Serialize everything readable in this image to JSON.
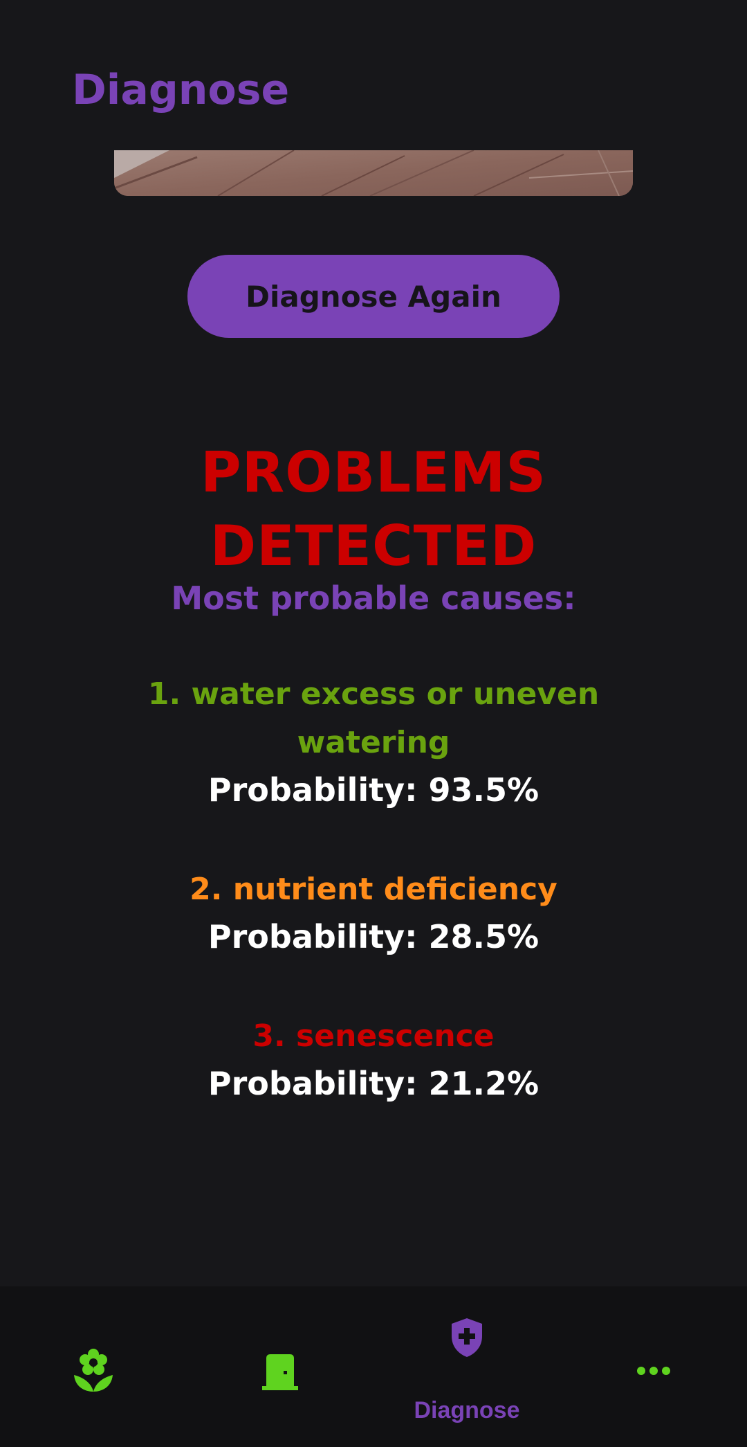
{
  "header": {
    "title": "Diagnose"
  },
  "actions": {
    "diagnose_again_label": "Diagnose Again"
  },
  "results": {
    "status_line1": "PROBLEMS",
    "status_line2": "DETECTED",
    "causes_heading": "Most probable causes:",
    "causes": [
      {
        "label": "1. water excess or uneven watering",
        "probability": "Probability: 93.5%",
        "color": "#6aa30f"
      },
      {
        "label": "2. nutrient deficiency",
        "probability": "Probability: 28.5%",
        "color": "#ff8c1a"
      },
      {
        "label": "3. senescence",
        "probability": "Probability: 21.2%",
        "color": "#cc0000"
      }
    ]
  },
  "bottom_nav": {
    "items": [
      {
        "icon": "flower-icon",
        "label": ""
      },
      {
        "icon": "door-icon",
        "label": ""
      },
      {
        "icon": "shield-plus-icon",
        "label": "Diagnose"
      },
      {
        "icon": "more-horizontal-icon",
        "label": ""
      }
    ],
    "active_color": "#7a43b6",
    "inactive_color": "#5fd31f"
  },
  "colors": {
    "background": "#17171a",
    "accent": "#7a43b6",
    "danger": "#cc0000"
  }
}
